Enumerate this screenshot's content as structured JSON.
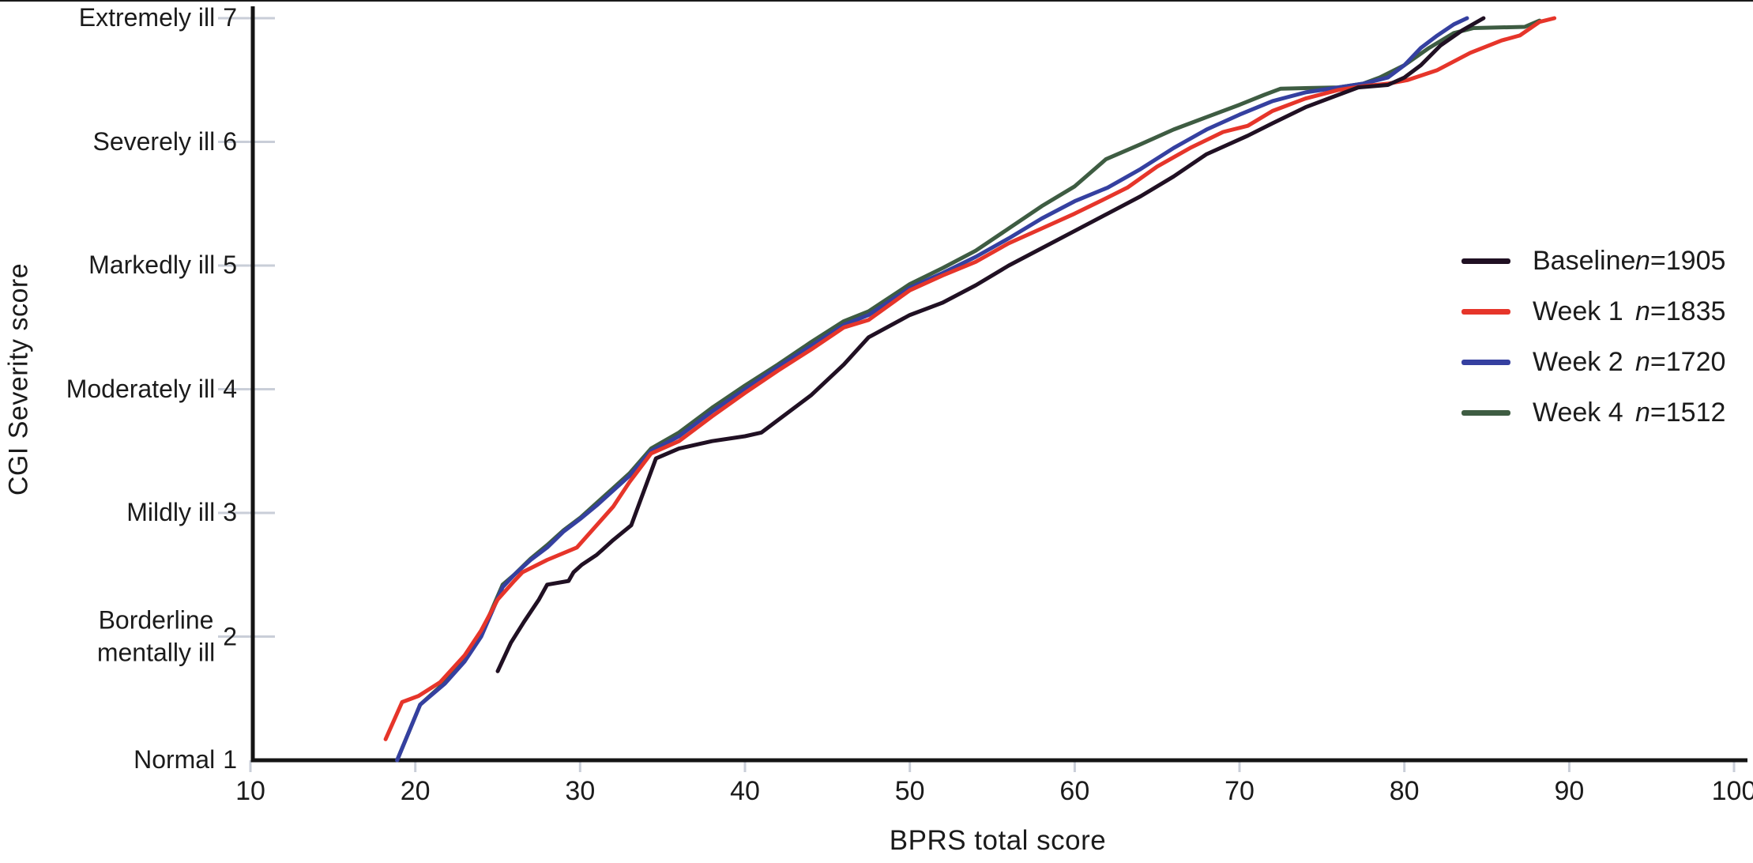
{
  "chart_data": {
    "type": "line",
    "title": "",
    "xlabel": "BPRS total score",
    "ylabel": "CGI Severity score",
    "xlim": [
      10,
      100
    ],
    "ylim": [
      1,
      7
    ],
    "grid": false,
    "legend_position": "right",
    "axis_color": "#141414",
    "tick_color": "#c9ced8",
    "x_ticks": [
      10,
      20,
      30,
      40,
      50,
      60,
      70,
      80,
      90,
      100
    ],
    "y_ticks": [
      {
        "value": 7,
        "text": "Extremely ill",
        "num": "7"
      },
      {
        "value": 6,
        "text": "Severely ill",
        "num": "6"
      },
      {
        "value": 5,
        "text": "Markedly ill",
        "num": "5"
      },
      {
        "value": 4,
        "text": "Moderately ill",
        "num": "4"
      },
      {
        "value": 3,
        "text": "Mildly ill",
        "num": "3"
      },
      {
        "value": 2,
        "text": "Borderline\nmentally ill",
        "num": "2"
      },
      {
        "value": 1,
        "text": "Normal",
        "num": "1"
      }
    ],
    "series": [
      {
        "name": "Baseline",
        "n_label": "n=1905",
        "color": "#201023",
        "points": [
          [
            25,
            1.72
          ],
          [
            25.8,
            1.95
          ],
          [
            26.6,
            2.12
          ],
          [
            27.5,
            2.3
          ],
          [
            28,
            2.42
          ],
          [
            29.3,
            2.45
          ],
          [
            29.6,
            2.52
          ],
          [
            30.1,
            2.58
          ],
          [
            31,
            2.66
          ],
          [
            32,
            2.78
          ],
          [
            33.1,
            2.9
          ],
          [
            34.6,
            3.44
          ],
          [
            36,
            3.52
          ],
          [
            38,
            3.58
          ],
          [
            40,
            3.62
          ],
          [
            41,
            3.65
          ],
          [
            42,
            3.75
          ],
          [
            44,
            3.95
          ],
          [
            46,
            4.2
          ],
          [
            47.5,
            4.42
          ],
          [
            50,
            4.6
          ],
          [
            52,
            4.7
          ],
          [
            54,
            4.84
          ],
          [
            56,
            5.0
          ],
          [
            58,
            5.14
          ],
          [
            60,
            5.28
          ],
          [
            62,
            5.42
          ],
          [
            64,
            5.56
          ],
          [
            66,
            5.72
          ],
          [
            68,
            5.9
          ],
          [
            70.5,
            6.05
          ],
          [
            72,
            6.15
          ],
          [
            74,
            6.28
          ],
          [
            76,
            6.38
          ],
          [
            77.2,
            6.44
          ],
          [
            79,
            6.46
          ],
          [
            80,
            6.52
          ],
          [
            81,
            6.62
          ],
          [
            82.2,
            6.78
          ],
          [
            83.5,
            6.9
          ],
          [
            84.8,
            7
          ]
        ]
      },
      {
        "name": "Week 1",
        "n_label": "n=1835",
        "color": "#e6352a",
        "points": [
          [
            18.2,
            1.17
          ],
          [
            19.2,
            1.47
          ],
          [
            20.2,
            1.52
          ],
          [
            21.5,
            1.63
          ],
          [
            23,
            1.85
          ],
          [
            24,
            2.05
          ],
          [
            25,
            2.3
          ],
          [
            26,
            2.45
          ],
          [
            26.5,
            2.52
          ],
          [
            28,
            2.62
          ],
          [
            29.8,
            2.72
          ],
          [
            31,
            2.9
          ],
          [
            32,
            3.05
          ],
          [
            33,
            3.25
          ],
          [
            34.3,
            3.48
          ],
          [
            36,
            3.58
          ],
          [
            38,
            3.78
          ],
          [
            40,
            3.97
          ],
          [
            42,
            4.15
          ],
          [
            44,
            4.32
          ],
          [
            46,
            4.5
          ],
          [
            47.5,
            4.56
          ],
          [
            50,
            4.8
          ],
          [
            52,
            4.92
          ],
          [
            54,
            5.03
          ],
          [
            56,
            5.18
          ],
          [
            58,
            5.3
          ],
          [
            60,
            5.42
          ],
          [
            62,
            5.55
          ],
          [
            63.2,
            5.63
          ],
          [
            65,
            5.8
          ],
          [
            67,
            5.95
          ],
          [
            69,
            6.08
          ],
          [
            70.5,
            6.13
          ],
          [
            72,
            6.25
          ],
          [
            74,
            6.35
          ],
          [
            76,
            6.42
          ],
          [
            77.5,
            6.45
          ],
          [
            79,
            6.47
          ],
          [
            80.2,
            6.5
          ],
          [
            82,
            6.58
          ],
          [
            84,
            6.72
          ],
          [
            85.9,
            6.82
          ],
          [
            87,
            6.86
          ],
          [
            88.2,
            6.97
          ],
          [
            89.1,
            7
          ]
        ]
      },
      {
        "name": "Week 2",
        "n_label": "n=1720",
        "color": "#3540a0",
        "points": [
          [
            18.9,
            1
          ],
          [
            20.3,
            1.45
          ],
          [
            21.8,
            1.62
          ],
          [
            23,
            1.8
          ],
          [
            24,
            2
          ],
          [
            25.3,
            2.4
          ],
          [
            26,
            2.5
          ],
          [
            27,
            2.62
          ],
          [
            28,
            2.72
          ],
          [
            29,
            2.85
          ],
          [
            30,
            2.95
          ],
          [
            31,
            3.06
          ],
          [
            32,
            3.18
          ],
          [
            33,
            3.3
          ],
          [
            34.3,
            3.5
          ],
          [
            36,
            3.62
          ],
          [
            38,
            3.82
          ],
          [
            40,
            4
          ],
          [
            42,
            4.18
          ],
          [
            44,
            4.35
          ],
          [
            46,
            4.52
          ],
          [
            47.5,
            4.6
          ],
          [
            50,
            4.82
          ],
          [
            52,
            4.94
          ],
          [
            54,
            5.07
          ],
          [
            56,
            5.22
          ],
          [
            58,
            5.38
          ],
          [
            60,
            5.52
          ],
          [
            62,
            5.63
          ],
          [
            64,
            5.78
          ],
          [
            66,
            5.95
          ],
          [
            68,
            6.1
          ],
          [
            70,
            6.22
          ],
          [
            72,
            6.33
          ],
          [
            74,
            6.4
          ],
          [
            76,
            6.44
          ],
          [
            77.5,
            6.47
          ],
          [
            79,
            6.52
          ],
          [
            80,
            6.62
          ],
          [
            81,
            6.76
          ],
          [
            82,
            6.86
          ],
          [
            83,
            6.95
          ],
          [
            83.8,
            7
          ]
        ]
      },
      {
        "name": "Week 4",
        "n_label": "n=1512",
        "color": "#3e5c42",
        "points": [
          [
            18.9,
            1
          ],
          [
            20.3,
            1.45
          ],
          [
            21.8,
            1.63
          ],
          [
            23,
            1.82
          ],
          [
            24,
            2.02
          ],
          [
            25.3,
            2.42
          ],
          [
            26,
            2.5
          ],
          [
            27,
            2.63
          ],
          [
            28,
            2.74
          ],
          [
            29,
            2.86
          ],
          [
            30,
            2.96
          ],
          [
            31,
            3.08
          ],
          [
            32,
            3.2
          ],
          [
            33,
            3.32
          ],
          [
            34.3,
            3.52
          ],
          [
            36,
            3.65
          ],
          [
            38,
            3.85
          ],
          [
            40,
            4.03
          ],
          [
            42,
            4.2
          ],
          [
            44,
            4.38
          ],
          [
            46,
            4.55
          ],
          [
            47.5,
            4.63
          ],
          [
            50,
            4.85
          ],
          [
            52,
            4.98
          ],
          [
            54,
            5.12
          ],
          [
            56,
            5.3
          ],
          [
            58,
            5.48
          ],
          [
            60,
            5.64
          ],
          [
            61.9,
            5.86
          ],
          [
            64,
            5.98
          ],
          [
            66,
            6.1
          ],
          [
            68,
            6.2
          ],
          [
            70,
            6.3
          ],
          [
            71.5,
            6.38
          ],
          [
            72.5,
            6.43
          ],
          [
            76,
            6.44
          ],
          [
            77.5,
            6.47
          ],
          [
            78.5,
            6.52
          ],
          [
            80,
            6.62
          ],
          [
            81.5,
            6.76
          ],
          [
            83,
            6.88
          ],
          [
            84.2,
            6.92
          ],
          [
            87.3,
            6.93
          ],
          [
            88.2,
            6.98
          ]
        ]
      }
    ]
  }
}
